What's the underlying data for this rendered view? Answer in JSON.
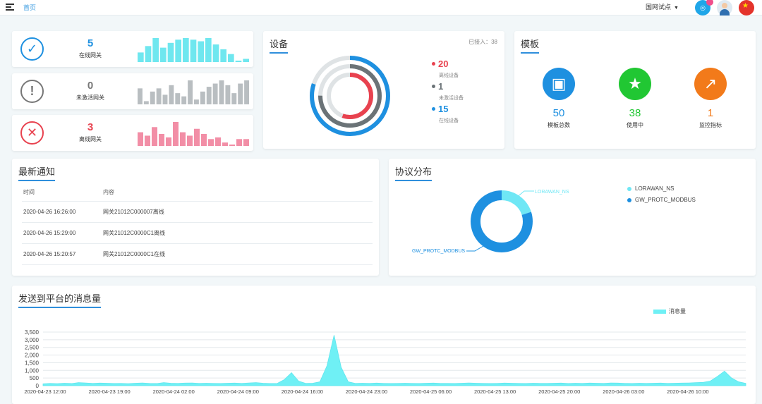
{
  "topbar": {
    "breadcrumb": "首页",
    "node_selector": "国网试点",
    "app_icon": "grid-app-icon",
    "avatar": "user-avatar",
    "flag": "china-flag-icon"
  },
  "gateway_stats": [
    {
      "value": "5",
      "label": "在线网关",
      "icon": "check-circle-icon",
      "color": "#1e90e0",
      "bar_color": "#6fe7ef",
      "bars": [
        6,
        10,
        15,
        9,
        12,
        14,
        15,
        14,
        13,
        15,
        11,
        8,
        5,
        0,
        2
      ]
    },
    {
      "value": "0",
      "label": "未激活网关",
      "icon": "exclamation-circle-icon",
      "color": "#777777",
      "bar_color": "#b9bec1",
      "bars": [
        10,
        2,
        8,
        10,
        6,
        12,
        7,
        5,
        15,
        3,
        8,
        11,
        13,
        15,
        12,
        7,
        13,
        15
      ]
    },
    {
      "value": "3",
      "label": "离线网关",
      "icon": "x-circle-icon",
      "color": "#e8424f",
      "bar_color": "#f28ea6",
      "bars": [
        8,
        6,
        11,
        7,
        5,
        14,
        8,
        6,
        10,
        7,
        4,
        5,
        2,
        0,
        4,
        4
      ]
    }
  ],
  "device": {
    "title": "设备",
    "connected_label": "已接入：38",
    "legend": [
      {
        "value": "20",
        "label": "离线设备",
        "color": "#e8424f"
      },
      {
        "value": "1",
        "label": "未激活设备",
        "color": "#6b7377"
      },
      {
        "value": "15",
        "label": "在线设备",
        "color": "#1e90e0"
      }
    ],
    "rings": [
      {
        "name": "online",
        "value": 15,
        "color": "#1e90e0"
      },
      {
        "name": "inactive",
        "value": 1,
        "color": "#6b7377"
      },
      {
        "name": "offline",
        "value": 20,
        "color": "#e8424f"
      }
    ]
  },
  "template": {
    "title": "模板",
    "items": [
      {
        "value": "50",
        "label": "模板总数",
        "icon": "layout-icon",
        "color": "#1e90e0"
      },
      {
        "value": "38",
        "label": "使用中",
        "icon": "star-icon",
        "color": "#21c733"
      },
      {
        "value": "1",
        "label": "监控指标",
        "icon": "trend-chart-icon",
        "color": "#f27a1a"
      }
    ]
  },
  "notice": {
    "title": "最新通知",
    "headers": [
      "时间",
      "内容"
    ],
    "rows": [
      [
        "2020-04-26 16:26:00",
        "网关21012C000007离线"
      ],
      [
        "2020-04-26 15:29:00",
        "网关21012C0000C1离线"
      ],
      [
        "2020-04-26 15:20:57",
        "网关21012C0000C1在线"
      ]
    ]
  },
  "protocol": {
    "title": "协议分布",
    "slices": [
      {
        "name": "LORAWAN_NS",
        "value": 1,
        "color": "#6fe7f5"
      },
      {
        "name": "GW_PROTC_MODBUS",
        "value": 4,
        "color": "#1e90e0"
      }
    ]
  },
  "messages": {
    "title": "发送到平台的消息量",
    "legend": "消息量",
    "color": "#6ff0f5"
  },
  "chart_data": {
    "type": "area",
    "title": "发送到平台的消息量",
    "series": [
      {
        "name": "消息量",
        "values": [
          120,
          150,
          130,
          160,
          140,
          200,
          180,
          150,
          170,
          160,
          140,
          150,
          130,
          160,
          180,
          150,
          140,
          200,
          160,
          150,
          170,
          180,
          150,
          160,
          150,
          140,
          160,
          170,
          150,
          180,
          200,
          160,
          140,
          150,
          400,
          850,
          300,
          150,
          160,
          250,
          1300,
          3300,
          1200,
          250,
          150,
          160,
          150,
          170,
          150,
          140,
          150,
          160,
          150,
          140,
          160,
          170,
          150,
          150,
          140,
          160,
          180,
          160,
          150,
          140,
          150,
          170,
          160,
          150,
          140,
          160,
          150,
          150,
          160,
          170,
          140,
          160,
          150,
          170,
          160,
          150,
          180,
          170,
          150,
          140,
          160,
          150,
          160,
          170,
          150,
          160,
          170,
          180,
          200,
          220,
          300,
          600,
          950,
          500,
          250,
          150
        ]
      }
    ],
    "x_start": "2020-04-23 12:00",
    "x_end": "2020-04-26 13:00",
    "x_ticks": [
      "2020-04-23 12:00",
      "2020-04-23 19:00",
      "2020-04-24 02:00",
      "2020-04-24 09:00",
      "2020-04-24 16:00",
      "2020-04-24 23:00",
      "2020-04-25 06:00",
      "2020-04-25 13:00",
      "2020-04-25 20:00",
      "2020-04-26 03:00",
      "2020-04-26 10:00"
    ],
    "y_ticks": [
      "3,500",
      "3,000",
      "2,500",
      "2,000",
      "1,500",
      "1,000",
      "500",
      "0"
    ],
    "ylim": [
      0,
      3500
    ],
    "grid": true,
    "legend_position": "top-right"
  }
}
